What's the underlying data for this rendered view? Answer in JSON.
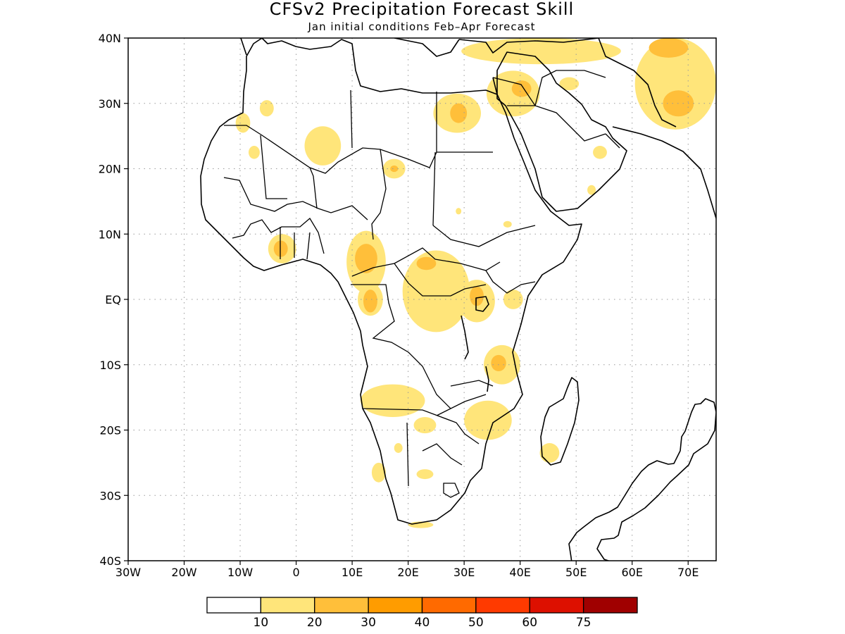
{
  "title": "CFSv2 Precipitation Forecast Skill",
  "subtitle": "Jan initial conditions  Feb–Apr Forecast",
  "map": {
    "region": "Africa",
    "lon_range": [
      -30,
      75
    ],
    "lat_range": [
      -40,
      40
    ],
    "lon_ticks": [
      {
        "value": -30,
        "label": "30W"
      },
      {
        "value": -20,
        "label": "20W"
      },
      {
        "value": -10,
        "label": "10W"
      },
      {
        "value": 0,
        "label": "0"
      },
      {
        "value": 10,
        "label": "10E"
      },
      {
        "value": 20,
        "label": "20E"
      },
      {
        "value": 30,
        "label": "30E"
      },
      {
        "value": 40,
        "label": "40E"
      },
      {
        "value": 50,
        "label": "50E"
      },
      {
        "value": 60,
        "label": "60E"
      },
      {
        "value": 70,
        "label": "70E"
      }
    ],
    "lat_ticks": [
      {
        "value": 40,
        "label": "40N"
      },
      {
        "value": 30,
        "label": "30N"
      },
      {
        "value": 20,
        "label": "20N"
      },
      {
        "value": 10,
        "label": "10N"
      },
      {
        "value": 0,
        "label": "EQ"
      },
      {
        "value": -10,
        "label": "10S"
      },
      {
        "value": -20,
        "label": "20S"
      },
      {
        "value": -30,
        "label": "30S"
      },
      {
        "value": -40,
        "label": "40S"
      }
    ],
    "grid": true
  },
  "colorbar": {
    "colors": [
      "#ffffff",
      "#ffe57a",
      "#ffbf3a",
      "#ff9c00",
      "#ff6a00",
      "#ff3a00",
      "#dd1000",
      "#a00000"
    ],
    "labels": [
      "10",
      "20",
      "30",
      "40",
      "50",
      "60",
      "75"
    ]
  },
  "skill_regions": [
    {
      "level": 1,
      "lon": [
        -10.8,
        -8.2
      ],
      "lat": [
        25.5,
        28.5
      ]
    },
    {
      "level": 1,
      "lon": [
        -6.5,
        -4.0
      ],
      "lat": [
        28.0,
        30.5
      ]
    },
    {
      "level": 1,
      "lon": [
        -8.5,
        -6.5
      ],
      "lat": [
        21.5,
        23.5
      ]
    },
    {
      "level": 1,
      "lon": [
        1.5,
        8.0
      ],
      "lat": [
        20.5,
        26.5
      ]
    },
    {
      "level": 1,
      "lon": [
        15.5,
        19.5
      ],
      "lat": [
        18.5,
        21.5
      ]
    },
    {
      "level": 2,
      "lon": [
        16.8,
        18.2
      ],
      "lat": [
        19.5,
        20.5
      ]
    },
    {
      "level": 1,
      "lon": [
        24.5,
        33.0
      ],
      "lat": [
        25.5,
        31.5
      ]
    },
    {
      "level": 2,
      "lon": [
        27.5,
        30.5
      ],
      "lat": [
        27.0,
        30.0
      ]
    },
    {
      "level": 1,
      "lon": [
        29.5,
        58.0
      ],
      "lat": [
        36.0,
        40.0
      ]
    },
    {
      "level": 1,
      "lon": [
        34.0,
        43.5
      ],
      "lat": [
        28.0,
        35.0
      ]
    },
    {
      "level": 2,
      "lon": [
        38.5,
        42.0
      ],
      "lat": [
        31.0,
        33.5
      ]
    },
    {
      "level": 1,
      "lon": [
        47.0,
        50.5
      ],
      "lat": [
        32.0,
        34.0
      ]
    },
    {
      "level": 1,
      "lon": [
        53.0,
        55.5
      ],
      "lat": [
        21.5,
        23.5
      ]
    },
    {
      "level": 1,
      "lon": [
        52.0,
        53.5
      ],
      "lat": [
        16.0,
        17.5
      ]
    },
    {
      "level": 1,
      "lon": [
        60.5,
        75.0
      ],
      "lat": [
        26.0,
        40.0
      ]
    },
    {
      "level": 2,
      "lon": [
        65.5,
        71.0
      ],
      "lat": [
        28.0,
        32.0
      ]
    },
    {
      "level": 2,
      "lon": [
        63.0,
        70.0
      ],
      "lat": [
        37.0,
        40.0
      ]
    },
    {
      "level": 1,
      "lon": [
        -5.0,
        0.0
      ],
      "lat": [
        5.5,
        10.0
      ]
    },
    {
      "level": 2,
      "lon": [
        -4.0,
        -1.5
      ],
      "lat": [
        6.5,
        9.0
      ]
    },
    {
      "level": 1,
      "lon": [
        9.0,
        16.0
      ],
      "lat": [
        1.0,
        10.5
      ]
    },
    {
      "level": 2,
      "lon": [
        10.5,
        14.5
      ],
      "lat": [
        4.0,
        8.5
      ]
    },
    {
      "level": 1,
      "lon": [
        11.0,
        15.5
      ],
      "lat": [
        -2.5,
        2.5
      ]
    },
    {
      "level": 2,
      "lon": [
        12.0,
        14.5
      ],
      "lat": [
        -2.0,
        1.5
      ]
    },
    {
      "level": 1,
      "lon": [
        19.0,
        31.0
      ],
      "lat": [
        -5.0,
        7.5
      ]
    },
    {
      "level": 2,
      "lon": [
        21.5,
        25.0
      ],
      "lat": [
        4.5,
        6.5
      ]
    },
    {
      "level": 1,
      "lon": [
        29.0,
        35.5
      ],
      "lat": [
        -3.5,
        3.0
      ]
    },
    {
      "level": 2,
      "lon": [
        31.0,
        33.5
      ],
      "lat": [
        -1.0,
        2.0
      ]
    },
    {
      "level": 1,
      "lon": [
        37.0,
        40.5
      ],
      "lat": [
        -1.5,
        1.5
      ]
    },
    {
      "level": 1,
      "lon": [
        33.5,
        40.0
      ],
      "lat": [
        -13.0,
        -7.0
      ]
    },
    {
      "level": 2,
      "lon": [
        34.8,
        37.5
      ],
      "lat": [
        -11.0,
        -8.5
      ]
    },
    {
      "level": 1,
      "lon": [
        11.5,
        23.0
      ],
      "lat": [
        -18.0,
        -13.0
      ]
    },
    {
      "level": 1,
      "lon": [
        30.0,
        38.5
      ],
      "lat": [
        -21.5,
        -15.5
      ]
    },
    {
      "level": 1,
      "lon": [
        21.0,
        25.0
      ],
      "lat": [
        -20.5,
        -18.0
      ]
    },
    {
      "level": 1,
      "lon": [
        17.5,
        19.0
      ],
      "lat": [
        -23.5,
        -22.0
      ]
    },
    {
      "level": 1,
      "lon": [
        13.5,
        16.0
      ],
      "lat": [
        -28.0,
        -25.0
      ]
    },
    {
      "level": 1,
      "lon": [
        21.5,
        24.5
      ],
      "lat": [
        -27.5,
        -26.0
      ]
    },
    {
      "level": 1,
      "lon": [
        43.5,
        47.0
      ],
      "lat": [
        -25.0,
        -22.0
      ]
    },
    {
      "level": 1,
      "lon": [
        20.0,
        24.5
      ],
      "lat": [
        -35.0,
        -34.0
      ]
    },
    {
      "level": 1,
      "lon": [
        37.0,
        38.5
      ],
      "lat": [
        11.0,
        12.0
      ]
    },
    {
      "level": 1,
      "lon": [
        28.5,
        29.5
      ],
      "lat": [
        13.0,
        14.0
      ]
    }
  ]
}
